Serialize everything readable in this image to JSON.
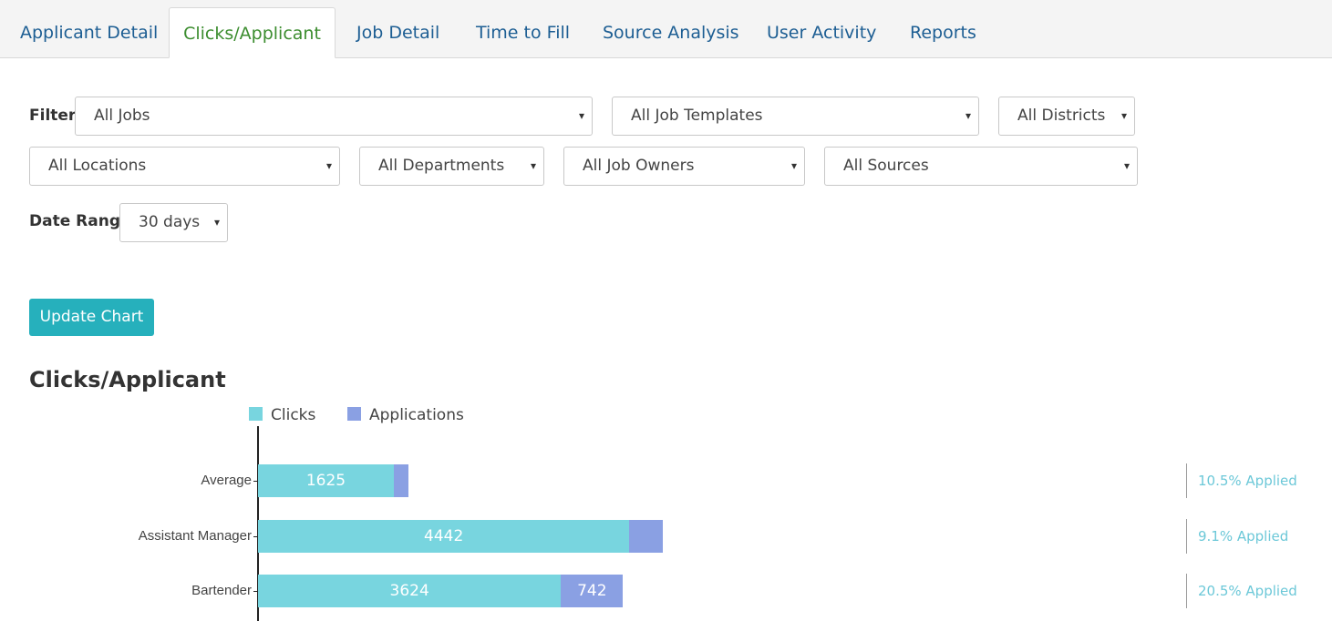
{
  "tabs": [
    {
      "label": "Applicant Detail"
    },
    {
      "label": "Clicks/Applicant"
    },
    {
      "label": "Job Detail"
    },
    {
      "label": "Time to Fill"
    },
    {
      "label": "Source Analysis"
    },
    {
      "label": "User Activity"
    },
    {
      "label": "Reports"
    }
  ],
  "active_tab": "Clicks/Applicant",
  "filters": {
    "filter_label": "Filter:",
    "jobs": "All Jobs",
    "job_templates": "All Job Templates",
    "districts": "All Districts",
    "locations": "All Locations",
    "departments": "All Departments",
    "job_owners": "All Job Owners",
    "sources": "All Sources",
    "date_range_label": "Date Range:",
    "date_range": "30 days",
    "caret": "▾"
  },
  "update_button": "Update Chart",
  "chart_title": "Clicks/Applicant",
  "colors": {
    "clicks": "#78d5df",
    "applications": "#8aa0e3",
    "accent": "#26b0bc",
    "link": "#1d5e93",
    "active": "#3c8d2f"
  },
  "chart_data": {
    "type": "bar",
    "orientation": "horizontal",
    "stacked": true,
    "title": "Clicks/Applicant",
    "legend": [
      "Clicks",
      "Applications"
    ],
    "legend_position": "top",
    "categories": [
      "Average",
      "Assistant Manager",
      "Bartender"
    ],
    "series": [
      {
        "name": "Clicks",
        "values": [
          1625,
          4442,
          3624
        ],
        "labels": [
          "1625",
          "4442",
          "3624"
        ]
      },
      {
        "name": "Applications",
        "values": [
          171,
          404,
          742
        ],
        "labels": [
          "",
          "",
          "742"
        ]
      }
    ],
    "applied": [
      "10.5% Applied",
      "9.1% Applied",
      "20.5% Applied"
    ]
  }
}
